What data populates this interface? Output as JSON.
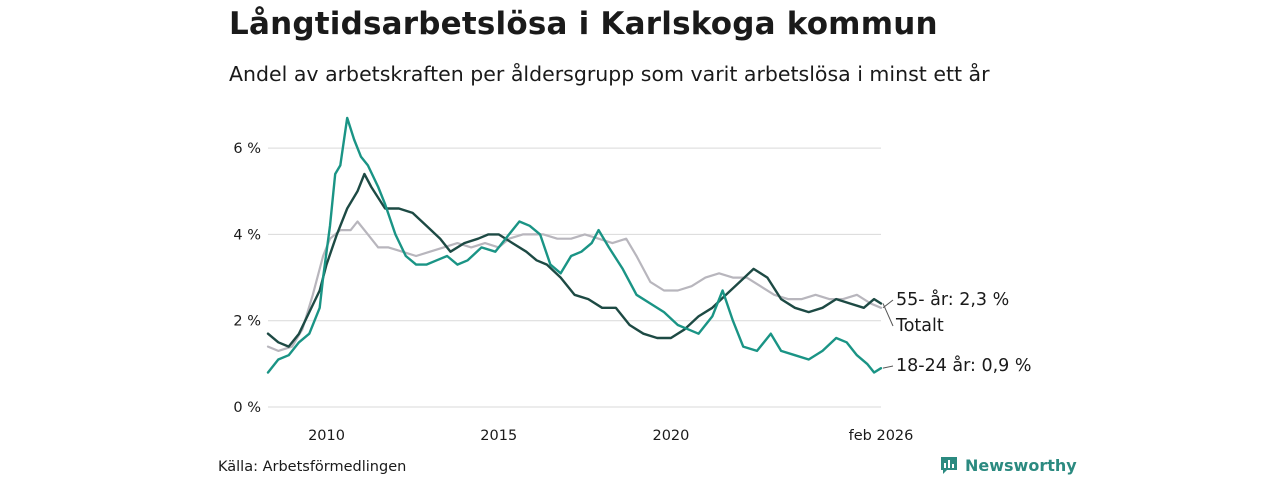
{
  "header": {
    "title": "Långtidsarbetslösa i Karlskoga kommun",
    "subtitle": "Andel av arbetskraften per åldersgrupp som varit arbetslösa i minst ett år"
  },
  "footer": {
    "source": "Källa: Arbetsförmedlingen",
    "brand": "Newsworthy"
  },
  "colors": {
    "total": "#1d4a44",
    "age_55": "#b8b6bd",
    "age_18_24": "#1a9485",
    "grid": "#d9d9d9",
    "brand": "#2b8a80"
  },
  "chart_data": {
    "type": "line",
    "title": "Långtidsarbetslösa i Karlskoga kommun",
    "subtitle": "Andel av arbetskraften per åldersgrupp som varit arbetslösa i minst ett år",
    "xlabel": "",
    "ylabel": "",
    "x_range": [
      2008.3,
      2026.1
    ],
    "ylim": [
      0,
      7
    ],
    "y_ticks": [
      0,
      2,
      4,
      6
    ],
    "y_tick_labels": [
      "0 %",
      "2 %",
      "4 %",
      "6 %"
    ],
    "x_ticks": [
      2010,
      2015,
      2020,
      2026.1
    ],
    "x_tick_labels": [
      "2010",
      "2015",
      "2020",
      "feb 2026"
    ],
    "grid": true,
    "series": [
      {
        "key": "age_55",
        "name": "55- år",
        "label": "55- år: 2,3 %",
        "x": [
          2008.3,
          2008.6,
          2009.0,
          2009.3,
          2009.6,
          2009.9,
          2010.1,
          2010.4,
          2010.7,
          2010.9,
          2011.2,
          2011.5,
          2011.8,
          2012.2,
          2012.6,
          2013.0,
          2013.4,
          2013.8,
          2014.2,
          2014.6,
          2015.0,
          2015.3,
          2015.7,
          2016.0,
          2016.3,
          2016.7,
          2017.1,
          2017.5,
          2017.9,
          2018.3,
          2018.7,
          2019.0,
          2019.4,
          2019.8,
          2020.2,
          2020.6,
          2021.0,
          2021.4,
          2021.8,
          2022.2,
          2022.6,
          2023.0,
          2023.4,
          2023.8,
          2024.2,
          2024.6,
          2025.0,
          2025.4,
          2025.8,
          2026.1
        ],
        "values": [
          1.4,
          1.3,
          1.4,
          1.8,
          2.6,
          3.5,
          3.9,
          4.1,
          4.1,
          4.3,
          4.0,
          3.7,
          3.7,
          3.6,
          3.5,
          3.6,
          3.7,
          3.8,
          3.7,
          3.8,
          3.7,
          3.9,
          4.0,
          4.0,
          4.0,
          3.9,
          3.9,
          4.0,
          3.9,
          3.8,
          3.9,
          3.5,
          2.9,
          2.7,
          2.7,
          2.8,
          3.0,
          3.1,
          3.0,
          3.0,
          2.8,
          2.6,
          2.5,
          2.5,
          2.6,
          2.5,
          2.5,
          2.6,
          2.4,
          2.3
        ]
      },
      {
        "key": "total",
        "name": "Totalt",
        "label": "Totalt",
        "x": [
          2008.3,
          2008.6,
          2008.9,
          2009.2,
          2009.5,
          2009.8,
          2010.0,
          2010.3,
          2010.6,
          2010.9,
          2011.1,
          2011.3,
          2011.7,
          2012.1,
          2012.5,
          2012.9,
          2013.3,
          2013.6,
          2014.0,
          2014.4,
          2014.7,
          2015.0,
          2015.4,
          2015.8,
          2016.1,
          2016.4,
          2016.8,
          2017.2,
          2017.6,
          2018.0,
          2018.4,
          2018.8,
          2019.2,
          2019.6,
          2020.0,
          2020.4,
          2020.8,
          2021.2,
          2021.6,
          2022.0,
          2022.4,
          2022.8,
          2023.2,
          2023.6,
          2024.0,
          2024.4,
          2024.8,
          2025.2,
          2025.6,
          2025.9,
          2026.1
        ],
        "values": [
          1.7,
          1.5,
          1.4,
          1.7,
          2.2,
          2.7,
          3.3,
          4.0,
          4.6,
          5.0,
          5.4,
          5.1,
          4.6,
          4.6,
          4.5,
          4.2,
          3.9,
          3.6,
          3.8,
          3.9,
          4.0,
          4.0,
          3.8,
          3.6,
          3.4,
          3.3,
          3.0,
          2.6,
          2.5,
          2.3,
          2.3,
          1.9,
          1.7,
          1.6,
          1.6,
          1.8,
          2.1,
          2.3,
          2.6,
          2.9,
          3.2,
          3.0,
          2.5,
          2.3,
          2.2,
          2.3,
          2.5,
          2.4,
          2.3,
          2.5,
          2.4
        ]
      },
      {
        "key": "age_18_24",
        "name": "18-24 år",
        "label": "18-24 år: 0,9 %",
        "x": [
          2008.3,
          2008.6,
          2008.9,
          2009.2,
          2009.5,
          2009.8,
          2009.9,
          2010.1,
          2010.25,
          2010.4,
          2010.6,
          2010.8,
          2011.0,
          2011.2,
          2011.5,
          2011.7,
          2012.0,
          2012.3,
          2012.6,
          2012.9,
          2013.2,
          2013.5,
          2013.8,
          2014.1,
          2014.5,
          2014.9,
          2015.2,
          2015.6,
          2015.9,
          2016.2,
          2016.5,
          2016.8,
          2017.1,
          2017.4,
          2017.7,
          2017.9,
          2018.2,
          2018.6,
          2019.0,
          2019.4,
          2019.8,
          2020.2,
          2020.5,
          2020.8,
          2021.2,
          2021.5,
          2021.8,
          2022.1,
          2022.5,
          2022.9,
          2023.2,
          2023.6,
          2024.0,
          2024.4,
          2024.8,
          2025.1,
          2025.4,
          2025.7,
          2025.9,
          2026.1
        ],
        "values": [
          0.8,
          1.1,
          1.2,
          1.5,
          1.7,
          2.3,
          3.0,
          4.2,
          5.4,
          5.6,
          6.7,
          6.2,
          5.8,
          5.6,
          5.1,
          4.7,
          4.0,
          3.5,
          3.3,
          3.3,
          3.4,
          3.5,
          3.3,
          3.4,
          3.7,
          3.6,
          3.9,
          4.3,
          4.2,
          4.0,
          3.3,
          3.1,
          3.5,
          3.6,
          3.8,
          4.1,
          3.7,
          3.2,
          2.6,
          2.4,
          2.2,
          1.9,
          1.8,
          1.7,
          2.1,
          2.7,
          2.0,
          1.4,
          1.3,
          1.7,
          1.3,
          1.2,
          1.1,
          1.3,
          1.6,
          1.5,
          1.2,
          1.0,
          0.8,
          0.9
        ]
      }
    ]
  }
}
